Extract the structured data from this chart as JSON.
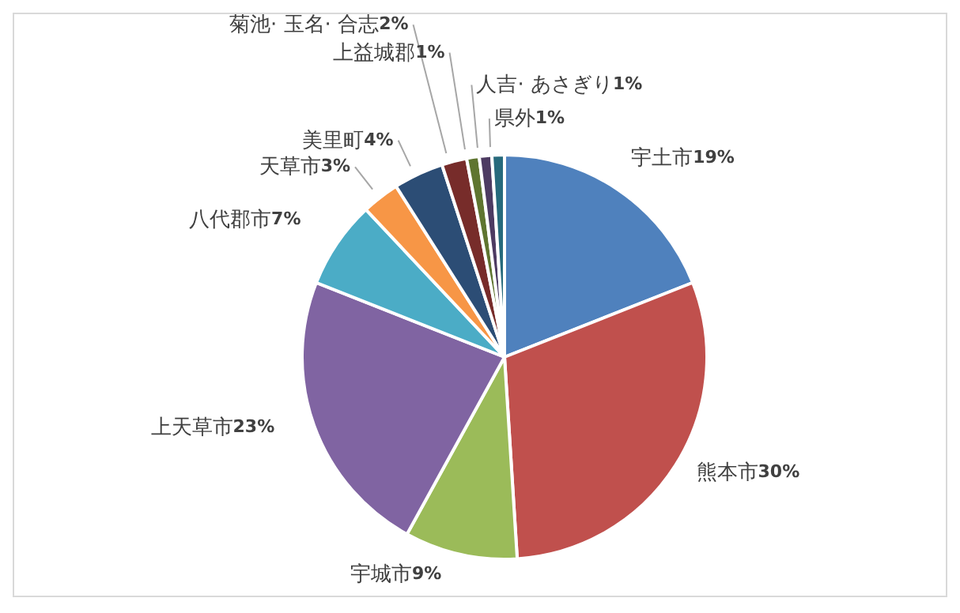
{
  "chart_data": {
    "type": "pie",
    "categories": [
      "宇土市",
      "熊本市",
      "宇城市",
      "上天草市",
      "八代郡市",
      "天草市",
      "美里町",
      "菊池· 玉名· 合志",
      "上益城郡",
      "人吉· あさぎり",
      "県外"
    ],
    "values": [
      19,
      30,
      9,
      23,
      7,
      3,
      4,
      2,
      1,
      1,
      1
    ],
    "value_labels": [
      "19%",
      "30%",
      "9%",
      "23%",
      "7%",
      "3%",
      "4%",
      "2%",
      "1%",
      "1%",
      "1%"
    ],
    "colors": [
      "#4f81bd",
      "#c0504d",
      "#9bbb59",
      "#8064a2",
      "#4bacc6",
      "#f79646",
      "#2c4d75",
      "#772c2a",
      "#5f7530",
      "#4d3b62",
      "#276a7c"
    ]
  }
}
